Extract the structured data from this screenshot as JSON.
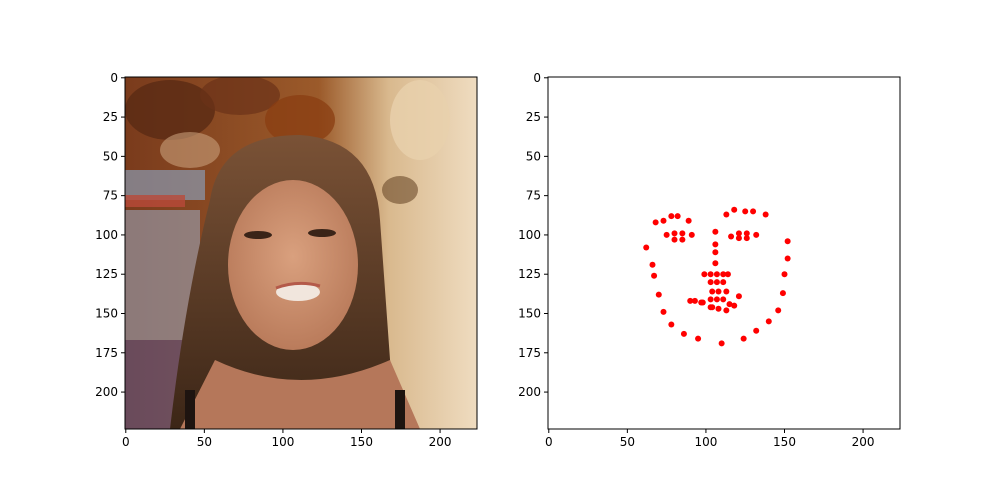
{
  "chart_data": [
    {
      "type": "image",
      "image_description": "video frame of a woman with long brown hair, smiling, in front of a decorative wall",
      "xlim": [
        0,
        223
      ],
      "ylim": [
        223,
        0
      ],
      "x_ticks": [
        0,
        50,
        100,
        150,
        200
      ],
      "y_ticks": [
        0,
        25,
        50,
        75,
        100,
        125,
        150,
        175,
        200
      ],
      "y_inverted": true
    },
    {
      "type": "scatter",
      "xlim": [
        0,
        223
      ],
      "ylim": [
        223,
        0
      ],
      "x_ticks": [
        0,
        50,
        100,
        150,
        200
      ],
      "y_ticks": [
        0,
        25,
        50,
        75,
        100,
        125,
        150,
        175,
        200
      ],
      "y_inverted": true,
      "marker_color": "#ff0000",
      "points": [
        [
          62,
          108
        ],
        [
          66,
          119
        ],
        [
          67,
          126
        ],
        [
          70,
          138
        ],
        [
          73,
          149
        ],
        [
          78,
          157
        ],
        [
          86,
          163
        ],
        [
          95,
          166
        ],
        [
          110,
          169
        ],
        [
          124,
          166
        ],
        [
          132,
          161
        ],
        [
          140,
          155
        ],
        [
          146,
          148
        ],
        [
          149,
          137
        ],
        [
          150,
          125
        ],
        [
          152,
          115
        ],
        [
          152,
          104
        ],
        [
          68,
          92
        ],
        [
          73,
          91
        ],
        [
          78,
          88
        ],
        [
          82,
          88
        ],
        [
          89,
          91
        ],
        [
          113,
          87
        ],
        [
          118,
          84
        ],
        [
          125,
          85
        ],
        [
          130,
          85
        ],
        [
          138,
          87
        ],
        [
          106,
          98
        ],
        [
          106,
          106
        ],
        [
          106,
          111
        ],
        [
          106,
          118
        ],
        [
          99,
          125
        ],
        [
          103,
          125
        ],
        [
          107,
          125
        ],
        [
          111,
          125
        ],
        [
          114,
          125
        ],
        [
          75,
          100
        ],
        [
          80,
          99
        ],
        [
          85,
          99
        ],
        [
          91,
          100
        ],
        [
          85,
          103
        ],
        [
          80,
          103
        ],
        [
          116,
          101
        ],
        [
          121,
          99
        ],
        [
          126,
          99
        ],
        [
          132,
          100
        ],
        [
          126,
          102
        ],
        [
          121,
          102
        ],
        [
          90,
          142
        ],
        [
          93,
          142
        ],
        [
          97,
          143
        ],
        [
          103,
          141
        ],
        [
          107,
          141
        ],
        [
          111,
          141
        ],
        [
          115,
          144
        ],
        [
          118,
          145
        ],
        [
          113,
          148
        ],
        [
          108,
          147
        ],
        [
          103,
          146
        ],
        [
          98,
          143
        ],
        [
          103,
          130
        ],
        [
          107,
          130
        ],
        [
          111,
          130
        ],
        [
          121,
          139
        ],
        [
          104,
          136
        ],
        [
          108,
          136
        ],
        [
          113,
          136
        ],
        [
          104,
          146
        ]
      ]
    }
  ],
  "colors": {
    "marker": "#ff0000",
    "axis": "#000000",
    "background": "#ffffff"
  }
}
